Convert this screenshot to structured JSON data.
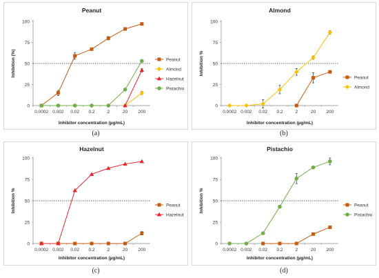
{
  "chart_data": [
    {
      "type": "line",
      "panel_label": "(a)",
      "title": "Peanut",
      "xlabel": "Inhibitor concentration (µg/mL)",
      "ylabel": "Inhibition (%)",
      "categories": [
        "0.0002",
        "0.002",
        "0.02",
        "0.2",
        "2",
        "20",
        "200"
      ],
      "ylim": [
        0,
        100
      ],
      "yticks": [
        "0",
        "25",
        "50",
        "75",
        "100"
      ],
      "reference_line": 50,
      "legend_position": "right",
      "series": [
        {
          "name": "Peanut",
          "color": "#c55a11",
          "marker": "square",
          "values": [
            0,
            15,
            59,
            67,
            80,
            91,
            97
          ],
          "errors": [
            0,
            3,
            4,
            1,
            2,
            1,
            1
          ]
        },
        {
          "name": "Almond",
          "color": "#ffc000",
          "marker": "diamond",
          "values": [
            null,
            null,
            null,
            null,
            null,
            0,
            15
          ],
          "errors": [
            0,
            0,
            0,
            0,
            0,
            0,
            2
          ]
        },
        {
          "name": "Hazelnut",
          "color": "#e8232a",
          "marker": "triangle",
          "values": [
            null,
            null,
            null,
            null,
            null,
            0,
            42
          ],
          "errors": [
            0,
            0,
            0,
            0,
            0,
            0,
            2
          ]
        },
        {
          "name": "Pistachio",
          "color": "#70ad47",
          "marker": "circle",
          "values": [
            0,
            0,
            0,
            0,
            0,
            19,
            53
          ],
          "errors": [
            0,
            0,
            0,
            0,
            0,
            0,
            1
          ]
        }
      ]
    },
    {
      "type": "line",
      "panel_label": "(b)",
      "title": "Almond",
      "xlabel": "Inhibitor concentration (µg/mL)",
      "ylabel": "Inhibition %",
      "categories": [
        "0.0002",
        "0.002",
        "0.02",
        "0.2",
        "2",
        "20",
        "200"
      ],
      "ylim": [
        0,
        100
      ],
      "yticks": [
        "0",
        "25",
        "50",
        "75",
        "100"
      ],
      "reference_line": 50,
      "legend_position": "right",
      "series": [
        {
          "name": "Peanut",
          "color": "#c55a11",
          "marker": "square",
          "values": [
            null,
            null,
            null,
            null,
            0,
            33,
            40
          ],
          "errors": [
            0,
            0,
            0,
            0,
            0,
            6,
            1
          ]
        },
        {
          "name": "Almond",
          "color": "#ffc000",
          "marker": "diamond",
          "values": [
            0,
            0,
            2,
            19,
            40,
            57,
            87
          ],
          "errors": [
            0,
            0,
            5,
            5,
            4,
            2,
            2
          ]
        }
      ]
    },
    {
      "type": "line",
      "panel_label": "(c)",
      "title": "Hazelnut",
      "xlabel": "Inhibitor concentration (µg/mL)",
      "ylabel": "Inhibition %",
      "categories": [
        "0.0002",
        "0.002",
        "0.02",
        "0.2",
        "2",
        "20",
        "200"
      ],
      "ylim": [
        0,
        100
      ],
      "yticks": [
        "0",
        "25",
        "50",
        "75",
        "100"
      ],
      "reference_line": 50,
      "legend_position": "right",
      "series": [
        {
          "name": "Peanut",
          "color": "#c55a11",
          "marker": "square",
          "values": [
            0,
            0,
            0,
            0,
            0,
            0,
            12
          ],
          "errors": [
            0,
            0,
            0,
            0,
            0,
            0,
            2
          ]
        },
        {
          "name": "Hazelnut",
          "color": "#e8232a",
          "marker": "triangle",
          "values": [
            0,
            0,
            62,
            81,
            88,
            93,
            96
          ],
          "errors": [
            0,
            0,
            0,
            0,
            0,
            0,
            0
          ]
        }
      ]
    },
    {
      "type": "line",
      "panel_label": "(d)",
      "title": "Pistachio",
      "xlabel": "Inhibitor concentration (µg/mL)",
      "ylabel": "Inhibition %",
      "categories": [
        "0.0002",
        "0.002",
        "0.02",
        "0.2",
        "2",
        "20",
        "200"
      ],
      "ylim": [
        0,
        100
      ],
      "yticks": [
        "0",
        "25",
        "50",
        "75",
        "100"
      ],
      "reference_line": 50,
      "legend_position": "right",
      "series": [
        {
          "name": "Peanut",
          "color": "#c55a11",
          "marker": "square",
          "values": [
            null,
            null,
            0,
            0,
            0,
            11,
            19
          ],
          "errors": [
            0,
            0,
            0,
            0,
            0,
            0,
            1
          ]
        },
        {
          "name": "Pistachio",
          "color": "#70ad47",
          "marker": "circle",
          "values": [
            0,
            0,
            12,
            43,
            76,
            89,
            96
          ],
          "errors": [
            0,
            0,
            0,
            0,
            6,
            1,
            4
          ]
        }
      ]
    }
  ]
}
